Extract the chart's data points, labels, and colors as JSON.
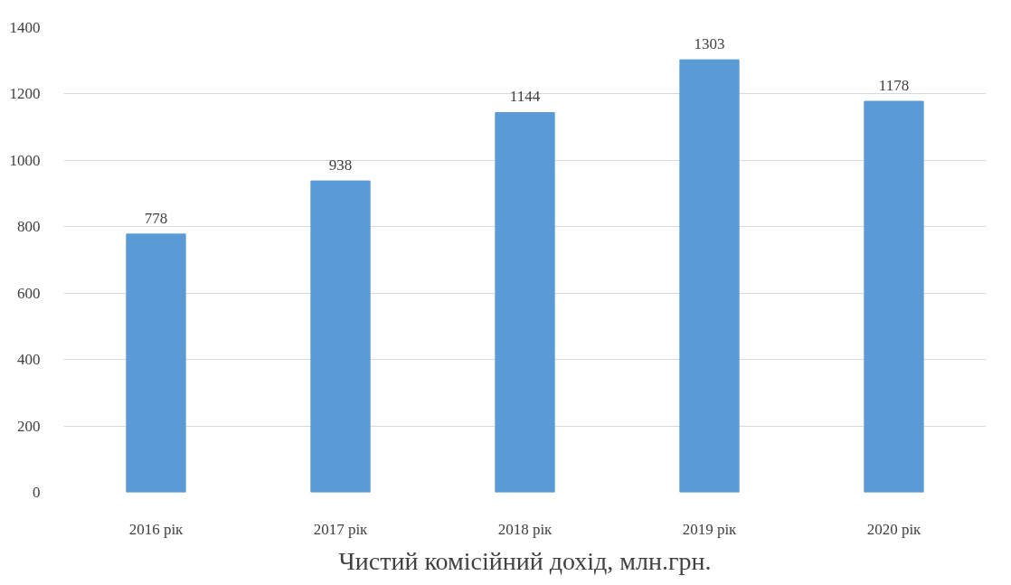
{
  "chart_data": {
    "type": "bar",
    "title": "Чистий комісійний дохід, млн.грн.",
    "categories": [
      "2016 рік",
      "2017 рік",
      "2018 рік",
      "2019 рік",
      "2020 рік"
    ],
    "values": [
      778,
      938,
      1144,
      1303,
      1178
    ],
    "color": "#5b9bd5",
    "ylim": [
      0,
      1400
    ],
    "yticks": [
      0,
      200,
      400,
      600,
      800,
      1000,
      1200,
      1400
    ],
    "grid": "y",
    "data_labels": true
  }
}
